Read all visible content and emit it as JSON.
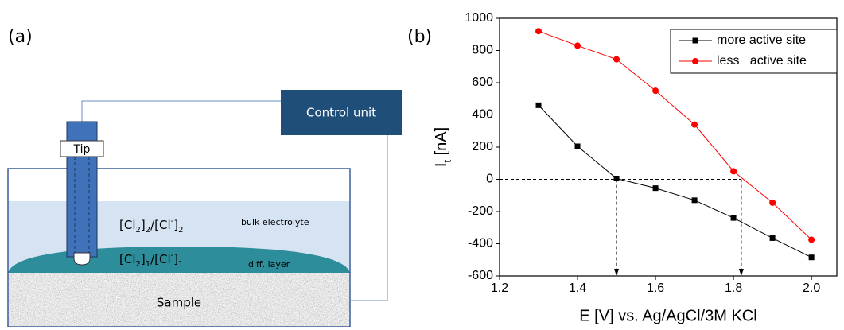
{
  "diagram": {
    "panel_label": "(a)",
    "control_unit": "Control unit",
    "tip": "Tip",
    "bulk_species": [
      "[Cl",
      "2",
      "]",
      "2",
      "/[Cl",
      "-",
      "]",
      "2"
    ],
    "bulk_label": "bulk electrolyte",
    "diff_species": [
      "[Cl",
      "2",
      "]",
      "1",
      "/[Cl",
      "-",
      "]",
      "1"
    ],
    "diff_label": "diff. layer",
    "sample": "Sample"
  },
  "chart_data": {
    "type": "line",
    "panel_label": "(b)",
    "x_label": "E [V] vs. Ag/AgCl/3M KCl",
    "y_label": [
      "I",
      "t",
      " [nA]"
    ],
    "x": [
      1.3,
      1.4,
      1.5,
      1.6,
      1.7,
      1.8,
      1.9,
      2.0
    ],
    "series": [
      {
        "name": "more active site",
        "color": "#000000",
        "marker": "square",
        "values": [
          460,
          205,
          5,
          -55,
          -130,
          -240,
          -365,
          -485
        ]
      },
      {
        "name": "less   active site",
        "color": "#ff0000",
        "marker": "circle",
        "values": [
          920,
          830,
          745,
          550,
          340,
          50,
          -145,
          -375
        ]
      }
    ],
    "xlim": [
      1.2,
      2.065
    ],
    "ylim": [
      -600,
      1000
    ],
    "xticks": [
      1.2,
      1.4,
      1.6,
      1.8,
      {
        "value": 2,
        "label": "2.0"
      }
    ],
    "yticks": [
      -600,
      -400,
      -200,
      0,
      200,
      400,
      600,
      800,
      1000
    ],
    "hline": 0,
    "vlines": [
      1.5,
      1.82
    ],
    "legend": "upper right"
  }
}
